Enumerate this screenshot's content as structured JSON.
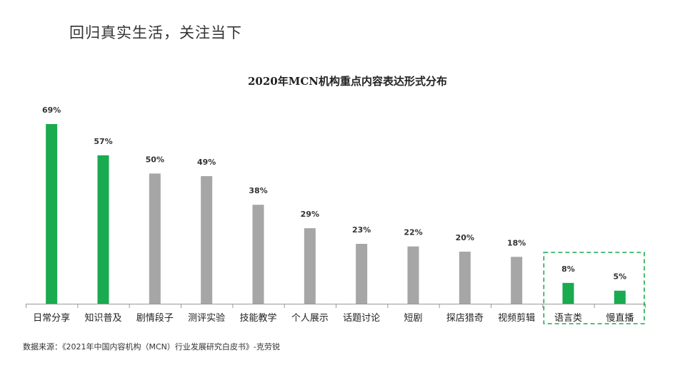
{
  "page": {
    "title": "回归真实生活，关注当下"
  },
  "source_note": "数据来源：《2021年中国内容机构（MCN）行业发展研究白皮书》-克劳锐",
  "colors": {
    "highlight": "#1aaa50",
    "normal": "#a6a6a6",
    "box": "#1aaa50",
    "axis": "#999999"
  },
  "chart_data": {
    "type": "bar",
    "title": "2020年MCN机构重点内容表达形式分布",
    "xlabel": "",
    "ylabel": "",
    "ylim": [
      0,
      69
    ],
    "categories": [
      "日常分享",
      "知识普及",
      "剧情段子",
      "测评实验",
      "技能教学",
      "个人展示",
      "话题讨论",
      "短剧",
      "探店猎奇",
      "视频剪辑",
      "语言类",
      "慢直播"
    ],
    "values": [
      69,
      57,
      50,
      49,
      38,
      29,
      23,
      22,
      20,
      18,
      8,
      5
    ],
    "data_labels": [
      "69%",
      "57%",
      "50%",
      "49%",
      "38%",
      "29%",
      "23%",
      "22%",
      "20%",
      "18%",
      "8%",
      "5%"
    ],
    "highlighted": [
      true,
      true,
      false,
      false,
      false,
      false,
      false,
      false,
      false,
      false,
      true,
      true
    ],
    "boxed_categories": [
      "语言类",
      "慢直播"
    ],
    "grid": false,
    "legend": "none"
  }
}
